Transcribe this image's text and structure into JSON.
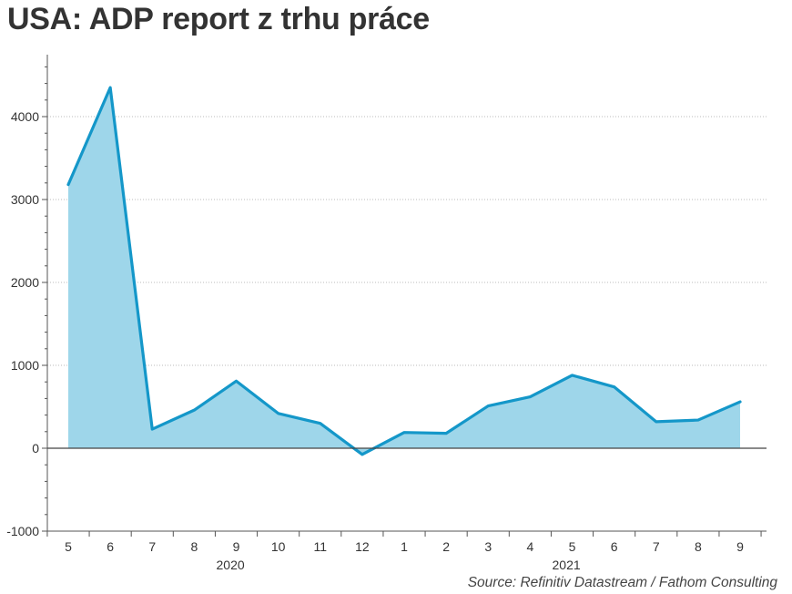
{
  "title": "USA: ADP report z trhu práce",
  "source": "Source: Refinitiv Datastream / Fathom Consulting",
  "colors": {
    "line": "#1497c9",
    "fill": "#9ed6ea",
    "axis": "#555555",
    "grid": "#bbbbbb",
    "title": "#333333"
  },
  "chart_data": {
    "type": "area",
    "title": "USA: ADP report z trhu práce",
    "xlabel": "",
    "ylabel": "",
    "ylim": [
      -1000,
      4700
    ],
    "yticks": [
      -1000,
      0,
      1000,
      2000,
      3000,
      4000
    ],
    "grid": true,
    "x": [
      "2020-05",
      "2020-06",
      "2020-07",
      "2020-08",
      "2020-09",
      "2020-10",
      "2020-11",
      "2020-12",
      "2021-01",
      "2021-02",
      "2021-03",
      "2021-04",
      "2021-05",
      "2021-06",
      "2021-07",
      "2021-08",
      "2021-09"
    ],
    "xtick_labels": [
      "5",
      "6",
      "7",
      "8",
      "9",
      "10",
      "11",
      "12",
      "1",
      "2",
      "3",
      "4",
      "5",
      "6",
      "7",
      "8",
      "9"
    ],
    "year_labels": [
      {
        "label": "2020",
        "at": "2020-09"
      },
      {
        "label": "2021",
        "at": "2021-05"
      }
    ],
    "series": [
      {
        "values": [
          3180,
          4350,
          230,
          460,
          810,
          420,
          300,
          -75,
          190,
          180,
          510,
          620,
          880,
          740,
          320,
          340,
          560
        ]
      }
    ]
  }
}
